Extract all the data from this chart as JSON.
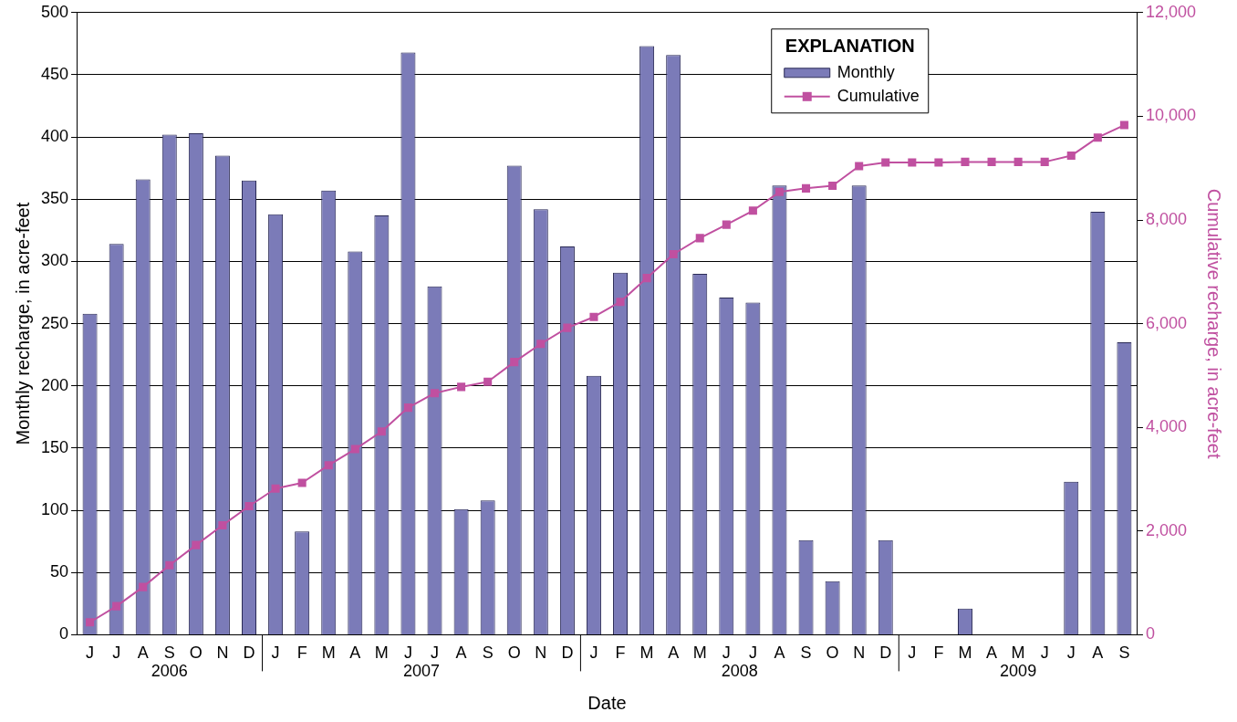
{
  "chart_data": {
    "type": "bar",
    "xlabel": "Date",
    "ylabel": "Monthly recharge, in acre-feet",
    "y2label": "Cumulative recharge, in acre-feet",
    "legend_title": "EXPLANATION",
    "categories": [
      "J",
      "J",
      "A",
      "S",
      "O",
      "N",
      "D",
      "J",
      "F",
      "M",
      "A",
      "M",
      "J",
      "J",
      "A",
      "S",
      "O",
      "N",
      "D",
      "J",
      "F",
      "M",
      "A",
      "M",
      "J",
      "J",
      "A",
      "S",
      "O",
      "N",
      "D",
      "J",
      "F",
      "M",
      "A",
      "M",
      "J",
      "J",
      "A",
      "S"
    ],
    "series": [
      {
        "name": "Monthly",
        "color": "#7b7bb8",
        "values": [
          258,
          314,
          366,
          402,
          403,
          385,
          365,
          338,
          83,
          357,
          308,
          337,
          468,
          280,
          101,
          108,
          377,
          342,
          312,
          208,
          291,
          473,
          466,
          290,
          271,
          267,
          361,
          76,
          43,
          361,
          76,
          0,
          0,
          21,
          0,
          0,
          0,
          123,
          340,
          235
        ]
      },
      {
        "name": "Cumulative",
        "type": "line",
        "axis": "y2",
        "color": "#c050a0",
        "values": [
          240,
          550,
          920,
          1340,
          1730,
          2110,
          2480,
          2820,
          2930,
          3270,
          3580,
          3920,
          4380,
          4660,
          4780,
          4880,
          5260,
          5610,
          5920,
          6130,
          6420,
          6880,
          7340,
          7650,
          7910,
          8180,
          8540,
          8610,
          8660,
          9040,
          9110,
          9110,
          9110,
          9120,
          9120,
          9120,
          9120,
          9240,
          9590,
          9830
        ]
      }
    ],
    "annotations": [
      "2006",
      "2007",
      "2008",
      "2009"
    ],
    "ylim": [
      0,
      500
    ],
    "yticks": [
      0,
      50,
      100,
      150,
      200,
      250,
      300,
      350,
      400,
      450,
      500
    ],
    "y2lim": [
      0,
      12000
    ],
    "y2ticks": [
      0,
      {
        "value": 2000,
        "label": "2,000"
      },
      {
        "value": 4000,
        "label": "4,000"
      },
      {
        "value": 6000,
        "label": "6,000"
      },
      {
        "value": 8000,
        "label": "8,000"
      },
      {
        "value": 10000,
        "label": "10,000"
      },
      {
        "value": 12000,
        "label": "12,000"
      }
    ],
    "grid": "y",
    "legend": "top right",
    "marker": "square",
    "line_style": "solid"
  }
}
